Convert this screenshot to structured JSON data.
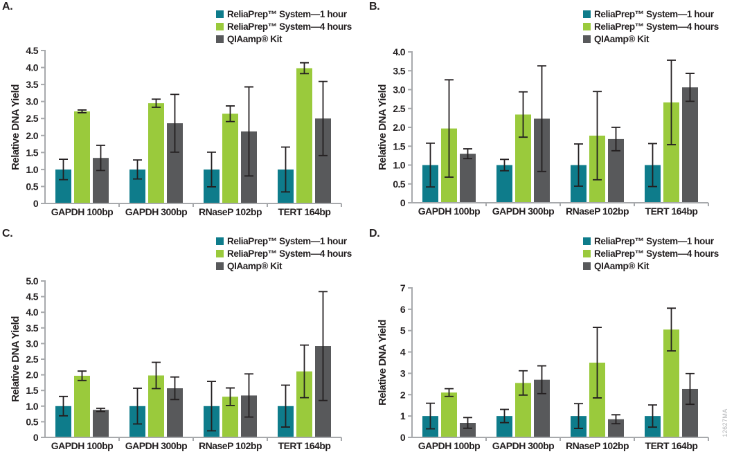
{
  "figure": {
    "ylabel": "Relative DNA Yield",
    "watermark": "12627MA"
  },
  "legend": {
    "items": [
      {
        "name": "ReliaPrep™ System—1 hour",
        "color": "#0e7c8b",
        "swatch_icon": "teal-square-icon"
      },
      {
        "name": "ReliaPrep™ System—4 hours",
        "color": "#9aca3c",
        "swatch_icon": "green-square-icon"
      },
      {
        "name": "QIAamp® Kit",
        "color": "#58595b",
        "swatch_icon": "gray-square-icon"
      }
    ]
  },
  "colors": {
    "teal": "#0e7c8b",
    "green": "#9aca3c",
    "gray": "#58595b",
    "axis": "#a7a9ac",
    "text": "#231f20"
  },
  "chart_data": [
    {
      "type": "bar",
      "panel_label": "A.",
      "ylabel": "Relative DNA Yield",
      "xlabel": "",
      "grid": false,
      "legend_position": "top-right",
      "error_bars": true,
      "ylim": [
        0,
        4.5
      ],
      "ytick_step": 0.5,
      "yticks": [
        "0",
        "0.5",
        "1.0",
        "1.5",
        "2.0",
        "2.5",
        "3.0",
        "3.5",
        "4.0",
        "4.5"
      ],
      "categories": [
        "GAPDH 100bp",
        "GAPDH 300bp",
        "RNaseP 102bp",
        "TERT 164bp"
      ],
      "series": [
        {
          "name": "ReliaPrep™ System—1 hour",
          "color": "#0e7c8b",
          "values": [
            1.0,
            1.0,
            1.0,
            1.0
          ],
          "errors": [
            0.3,
            0.28,
            0.51,
            0.66
          ]
        },
        {
          "name": "ReliaPrep™ System—4 hours",
          "color": "#9aca3c",
          "values": [
            2.71,
            2.95,
            2.64,
            3.98
          ],
          "errors": [
            0.04,
            0.12,
            0.23,
            0.16
          ]
        },
        {
          "name": "QIAamp® Kit",
          "color": "#58595b",
          "values": [
            1.34,
            2.36,
            2.12,
            2.5
          ],
          "errors": [
            0.37,
            0.85,
            1.31,
            1.09
          ]
        }
      ]
    },
    {
      "type": "bar",
      "panel_label": "B.",
      "ylabel": "Relative DNA Yield",
      "xlabel": "",
      "grid": false,
      "legend_position": "top-right",
      "error_bars": true,
      "ylim": [
        0,
        4.0
      ],
      "ytick_step": 0.5,
      "yticks": [
        "0",
        "0.5",
        "1.0",
        "1.5",
        "2.0",
        "2.5",
        "3.0",
        "3.5",
        "4.0"
      ],
      "categories": [
        "GAPDH 100bp",
        "GAPDH 300bp",
        "RNaseP 102bp",
        "TERT 164bp"
      ],
      "series": [
        {
          "name": "ReliaPrep™ System—1 hour",
          "color": "#0e7c8b",
          "values": [
            1.0,
            1.0,
            1.0,
            1.0
          ],
          "errors": [
            0.58,
            0.15,
            0.56,
            0.57
          ]
        },
        {
          "name": "ReliaPrep™ System—4 hours",
          "color": "#9aca3c",
          "values": [
            1.97,
            2.34,
            1.78,
            2.66
          ],
          "errors": [
            1.29,
            0.6,
            1.17,
            1.12
          ]
        },
        {
          "name": "QIAamp® Kit",
          "color": "#58595b",
          "values": [
            1.3,
            2.23,
            1.69,
            3.06
          ],
          "errors": [
            0.13,
            1.4,
            0.31,
            0.37
          ]
        }
      ]
    },
    {
      "type": "bar",
      "panel_label": "C.",
      "ylabel": "Relative DNA Yield",
      "xlabel": "",
      "grid": false,
      "legend_position": "top-right",
      "error_bars": true,
      "ylim": [
        0,
        5.0
      ],
      "ytick_step": 0.5,
      "yticks": [
        "0",
        "0.5",
        "1.0",
        "1.5",
        "2.0",
        "2.5",
        "3.0",
        "3.5",
        "4.0",
        "4.5",
        "5.0"
      ],
      "categories": [
        "GAPDH 100bp",
        "GAPDH 300bp",
        "RNaseP 102bp",
        "TERT 164bp"
      ],
      "series": [
        {
          "name": "ReliaPrep™ System—1 hour",
          "color": "#0e7c8b",
          "values": [
            1.0,
            1.0,
            1.0,
            1.0
          ],
          "errors": [
            0.31,
            0.57,
            0.79,
            0.67
          ]
        },
        {
          "name": "ReliaPrep™ System—4 hours",
          "color": "#9aca3c",
          "values": [
            1.97,
            1.98,
            1.3,
            2.11
          ],
          "errors": [
            0.15,
            0.42,
            0.28,
            0.84
          ]
        },
        {
          "name": "QIAamp® Kit",
          "color": "#58595b",
          "values": [
            0.88,
            1.57,
            1.34,
            2.92
          ],
          "errors": [
            0.05,
            0.36,
            0.69,
            1.74
          ]
        }
      ]
    },
    {
      "type": "bar",
      "panel_label": "D.",
      "ylabel": "Relative DNA Yield",
      "xlabel": "",
      "grid": false,
      "legend_position": "top-right",
      "error_bars": true,
      "ylim": [
        0,
        7
      ],
      "ytick_step": 1,
      "yticks": [
        "0",
        "1",
        "2",
        "3",
        "4",
        "5",
        "6",
        "7"
      ],
      "categories": [
        "GAPDH 100bp",
        "GAPDH 300bp",
        "RNaseP 102bp",
        "TERT 164bp"
      ],
      "series": [
        {
          "name": "ReliaPrep™ System—1 hour",
          "color": "#0e7c8b",
          "values": [
            1.0,
            1.0,
            1.0,
            1.0
          ],
          "errors": [
            0.6,
            0.31,
            0.58,
            0.52
          ]
        },
        {
          "name": "ReliaPrep™ System—4 hours",
          "color": "#9aca3c",
          "values": [
            2.1,
            2.55,
            3.5,
            5.05
          ],
          "errors": [
            0.18,
            0.57,
            1.65,
            1.0
          ]
        },
        {
          "name": "QIAamp® Kit",
          "color": "#58595b",
          "values": [
            0.68,
            2.7,
            0.85,
            2.27
          ],
          "errors": [
            0.25,
            0.65,
            0.21,
            0.72
          ]
        }
      ]
    }
  ]
}
